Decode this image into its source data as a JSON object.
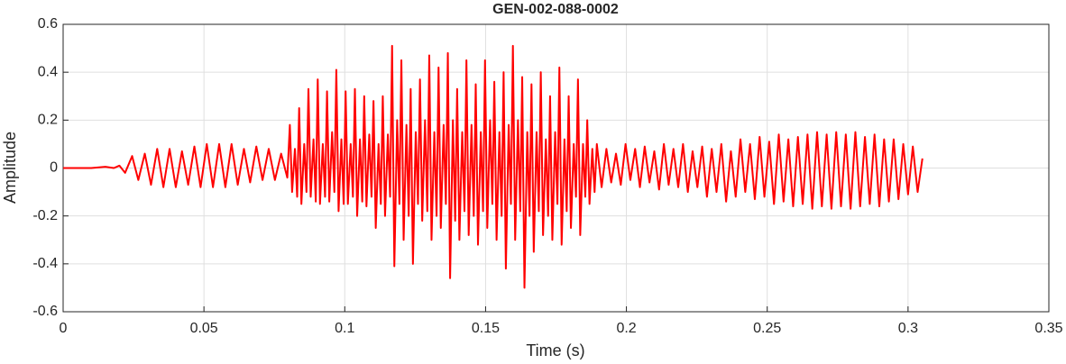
{
  "chart_data": {
    "type": "line",
    "title": "GEN-002-088-0002",
    "xlabel": "Time (s)",
    "ylabel": "Amplitude",
    "color": "#ff0000",
    "grid": true,
    "xlim": [
      0,
      0.35
    ],
    "xticks": [
      0,
      0.05,
      0.1,
      0.15,
      0.2,
      0.25,
      0.3,
      0.35
    ],
    "ylim": [
      -0.6,
      0.6
    ],
    "yticks": [
      -0.6,
      -0.4,
      -0.2,
      0,
      0.2,
      0.4,
      0.6
    ],
    "x": [
      0,
      0.01,
      0.015,
      0.018,
      0.02,
      0.022,
      0.0245,
      0.0267,
      0.029,
      0.0312,
      0.0334,
      0.0356,
      0.0378,
      0.04,
      0.0422,
      0.0444,
      0.0466,
      0.0488,
      0.051,
      0.0532,
      0.0554,
      0.0576,
      0.0598,
      0.062,
      0.0642,
      0.0664,
      0.0686,
      0.0708,
      0.073,
      0.0752,
      0.0774,
      0.0796,
      0.0805,
      0.0813,
      0.0823,
      0.0831,
      0.0838,
      0.0846,
      0.0856,
      0.0864,
      0.0871,
      0.0879,
      0.0889,
      0.0897,
      0.0904,
      0.0912,
      0.0922,
      0.093,
      0.0937,
      0.0945,
      0.0955,
      0.0963,
      0.097,
      0.0978,
      0.0988,
      0.0996,
      0.1003,
      0.1011,
      0.1021,
      0.1029,
      0.1036,
      0.1044,
      0.1054,
      0.1062,
      0.1069,
      0.1077,
      0.1087,
      0.1095,
      0.1102,
      0.111,
      0.112,
      0.1128,
      0.1135,
      0.1143,
      0.1153,
      0.1161,
      0.1168,
      0.1176,
      0.1186,
      0.1194,
      0.1201,
      0.1209,
      0.1219,
      0.1227,
      0.1234,
      0.1242,
      0.1252,
      0.126,
      0.1267,
      0.1275,
      0.1285,
      0.1293,
      0.13,
      0.1308,
      0.1318,
      0.1326,
      0.1333,
      0.1341,
      0.1351,
      0.1359,
      0.1366,
      0.1374,
      0.1384,
      0.1392,
      0.1399,
      0.1407,
      0.1417,
      0.1425,
      0.1432,
      0.144,
      0.145,
      0.1458,
      0.1465,
      0.1473,
      0.1483,
      0.1491,
      0.1498,
      0.1506,
      0.1516,
      0.1524,
      0.1531,
      0.1539,
      0.1549,
      0.1557,
      0.1564,
      0.1572,
      0.1582,
      0.159,
      0.1597,
      0.1605,
      0.1615,
      0.1623,
      0.163,
      0.1638,
      0.1648,
      0.1656,
      0.1663,
      0.1671,
      0.1681,
      0.1689,
      0.1696,
      0.1704,
      0.1714,
      0.1722,
      0.1729,
      0.1737,
      0.1747,
      0.1755,
      0.1762,
      0.177,
      0.178,
      0.1788,
      0.1795,
      0.1803,
      0.1813,
      0.1821,
      0.1828,
      0.1836,
      0.1846,
      0.1854,
      0.1861,
      0.1869,
      0.1879,
      0.1887,
      0.1895,
      0.1912,
      0.1929,
      0.1946,
      0.1963,
      0.198,
      0.1997,
      0.2014,
      0.2031,
      0.2048,
      0.2065,
      0.2082,
      0.2099,
      0.2116,
      0.2133,
      0.215,
      0.2167,
      0.2184,
      0.2201,
      0.2218,
      0.2235,
      0.2252,
      0.2269,
      0.2286,
      0.2303,
      0.232,
      0.2337,
      0.2354,
      0.2371,
      0.2388,
      0.2405,
      0.2422,
      0.2439,
      0.2456,
      0.2473,
      0.249,
      0.2507,
      0.2524,
      0.2541,
      0.2558,
      0.2575,
      0.2592,
      0.2609,
      0.2626,
      0.2643,
      0.266,
      0.2677,
      0.2694,
      0.2711,
      0.2728,
      0.2745,
      0.2762,
      0.2779,
      0.2796,
      0.2813,
      0.283,
      0.2847,
      0.2864,
      0.2881,
      0.2898,
      0.2915,
      0.2932,
      0.2949,
      0.2966,
      0.2983,
      0.3,
      0.3017,
      0.3034,
      0.3051
    ],
    "values": [
      0,
      0,
      0.005,
      0,
      0.01,
      -0.02,
      0.05,
      -0.05,
      0.06,
      -0.07,
      0.08,
      -0.08,
      0.08,
      -0.08,
      0.07,
      -0.07,
      0.09,
      -0.08,
      0.1,
      -0.08,
      0.1,
      -0.08,
      0.1,
      -0.07,
      0.08,
      -0.06,
      0.09,
      -0.05,
      0.08,
      -0.05,
      0.06,
      -0.04,
      0.18,
      -0.1,
      0.08,
      -0.12,
      0.25,
      -0.15,
      0.1,
      -0.1,
      0.33,
      -0.12,
      0.12,
      -0.14,
      0.37,
      -0.15,
      0.1,
      -0.12,
      0.32,
      -0.14,
      0.15,
      -0.1,
      0.41,
      -0.18,
      0.12,
      -0.15,
      0.32,
      -0.15,
      0.1,
      -0.12,
      0.33,
      -0.2,
      0.12,
      -0.14,
      0.3,
      -0.16,
      0.14,
      -0.12,
      0.28,
      -0.25,
      0.1,
      -0.15,
      0.3,
      -0.2,
      0.14,
      -0.12,
      0.51,
      -0.41,
      0.2,
      -0.15,
      0.45,
      -0.3,
      0.18,
      -0.2,
      0.33,
      -0.4,
      0.15,
      -0.15,
      0.37,
      -0.22,
      0.2,
      -0.18,
      0.47,
      -0.3,
      0.15,
      -0.2,
      0.42,
      -0.25,
      0.18,
      -0.15,
      0.48,
      -0.46,
      0.2,
      -0.22,
      0.33,
      -0.3,
      0.15,
      -0.18,
      0.45,
      -0.28,
      0.18,
      -0.2,
      0.35,
      -0.32,
      0.15,
      -0.18,
      0.45,
      -0.25,
      0.2,
      -0.15,
      0.36,
      -0.3,
      0.15,
      -0.2,
      0.4,
      -0.42,
      0.18,
      -0.15,
      0.51,
      -0.3,
      0.2,
      -0.18,
      0.38,
      -0.5,
      0.15,
      -0.2,
      0.35,
      -0.35,
      0.15,
      -0.18,
      0.4,
      -0.28,
      0.12,
      -0.2,
      0.3,
      -0.3,
      0.15,
      -0.15,
      0.42,
      -0.32,
      0.12,
      -0.18,
      0.3,
      -0.25,
      0.1,
      -0.12,
      0.37,
      -0.28,
      0.1,
      -0.12,
      0.2,
      -0.15,
      0.08,
      -0.1,
      0.1,
      -0.08,
      0.08,
      -0.06,
      0.06,
      -0.07,
      0.1,
      -0.05,
      0.08,
      -0.08,
      0.09,
      -0.06,
      0.07,
      -0.09,
      0.1,
      -0.07,
      0.08,
      -0.08,
      0.1,
      -0.1,
      0.07,
      -0.08,
      0.09,
      -0.12,
      0.08,
      -0.1,
      0.1,
      -0.14,
      0.07,
      -0.12,
      0.12,
      -0.1,
      0.1,
      -0.13,
      0.13,
      -0.12,
      0.11,
      -0.15,
      0.14,
      -0.14,
      0.12,
      -0.16,
      0.13,
      -0.15,
      0.14,
      -0.17,
      0.15,
      -0.16,
      0.14,
      -0.17,
      0.15,
      -0.16,
      0.14,
      -0.17,
      0.15,
      -0.16,
      0.13,
      -0.15,
      0.14,
      -0.16,
      0.12,
      -0.14,
      0.12,
      -0.13,
      0.1,
      -0.11,
      0.09,
      -0.1,
      0.04
    ]
  }
}
